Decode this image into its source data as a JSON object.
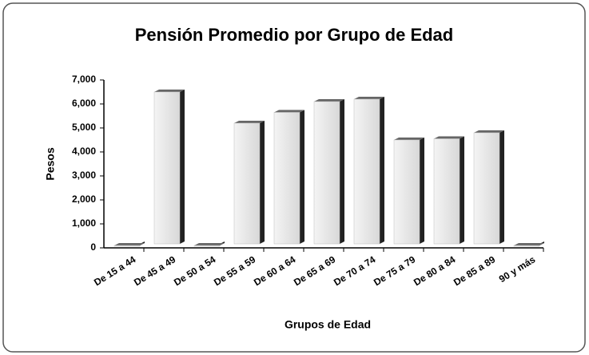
{
  "chart_data": {
    "type": "bar",
    "title": "Pensión Promedio por Grupo de Edad",
    "x_label": "Grupos de Edad",
    "y_label": "Pesos",
    "categories": [
      "De 15 a 44",
      "De 45 a 49",
      "De 50 a 54",
      "De 55 a 59",
      "De 60 a 64",
      "De 65 a 69",
      "De 70 a 74",
      "De 75 a 79",
      "De 80 a 84",
      "De 85 a 89",
      "90 y más"
    ],
    "values": [
      0,
      6400,
      0,
      5100,
      5550,
      6000,
      6100,
      4400,
      4450,
      4700,
      0
    ],
    "color": "#e6e6e6",
    "ylim": [
      0,
      7000
    ],
    "yticks": [
      0,
      {
        "value": 1000,
        "label": "1,000"
      },
      {
        "value": 2000,
        "label": "2,000"
      },
      {
        "value": 3000,
        "label": "3,000"
      },
      {
        "value": 4000,
        "label": "4,000"
      },
      {
        "value": 5000,
        "label": "5,000"
      },
      {
        "value": 6000,
        "label": "6,000"
      },
      {
        "value": 7000,
        "label": "7,000"
      }
    ],
    "grid": false
  }
}
